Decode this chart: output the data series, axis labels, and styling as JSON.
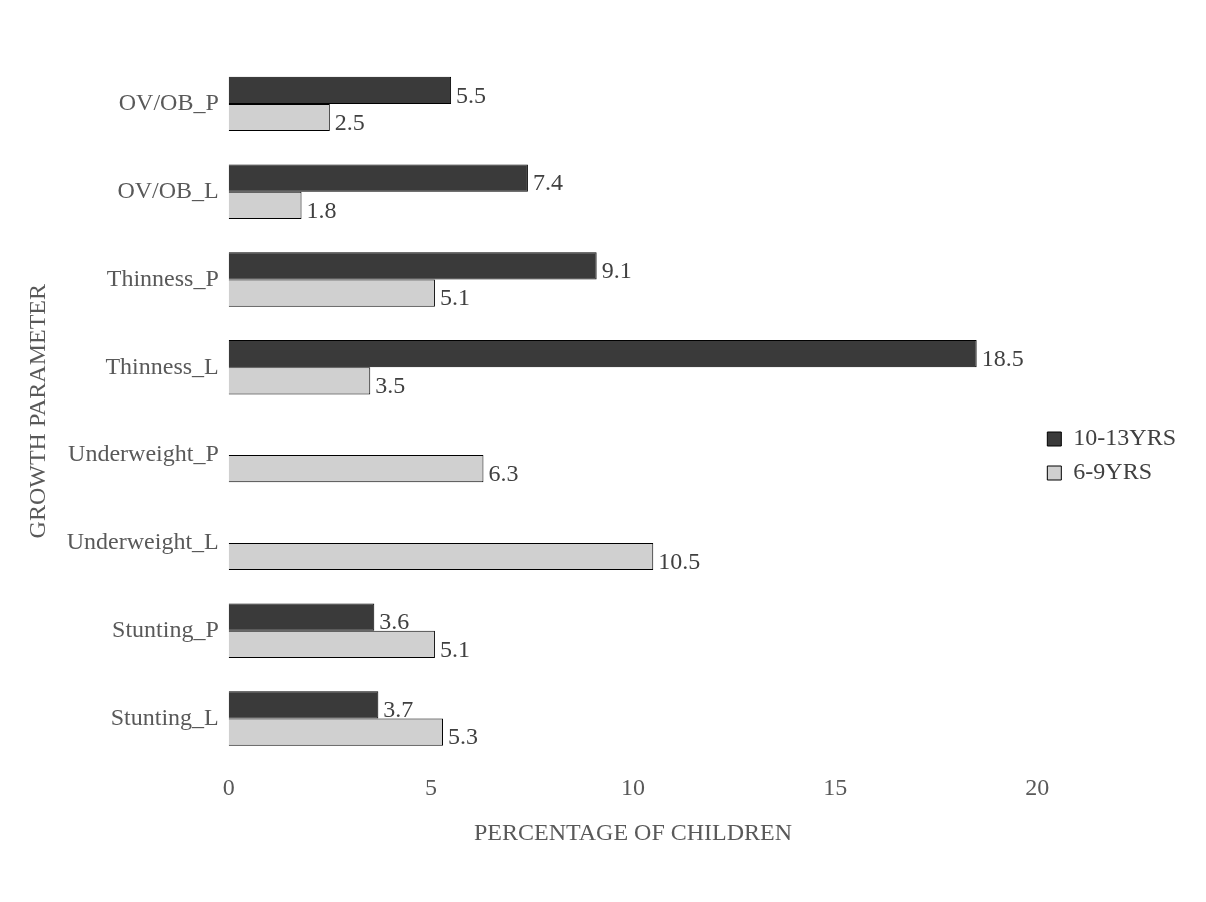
{
  "chart_data": {
    "type": "bar",
    "orientation": "horizontal",
    "xlabel": "PERCENTAGE OF CHILDREN",
    "ylabel": "GROWTH PARAMETER",
    "categories": [
      "OV/OB_P",
      "OV/OB_L",
      "Thinness_P",
      "Thinness_L",
      "Underweight_P",
      "Underweight_L",
      "Stunting_P",
      "Stunting_L"
    ],
    "series": [
      {
        "name": "10-13YRS",
        "color": "#3a3a3a",
        "values": [
          5.5,
          7.4,
          9.1,
          18.5,
          null,
          null,
          3.6,
          3.7
        ]
      },
      {
        "name": "6-9YRS",
        "color": "#d0d0d0",
        "values": [
          2.5,
          1.8,
          5.1,
          3.5,
          6.3,
          10.5,
          5.1,
          5.3
        ]
      }
    ],
    "xlim": [
      0,
      20
    ],
    "xticks": [
      0,
      5,
      10,
      15,
      20
    ],
    "grid": false,
    "legend": "right",
    "data_labels": true
  }
}
